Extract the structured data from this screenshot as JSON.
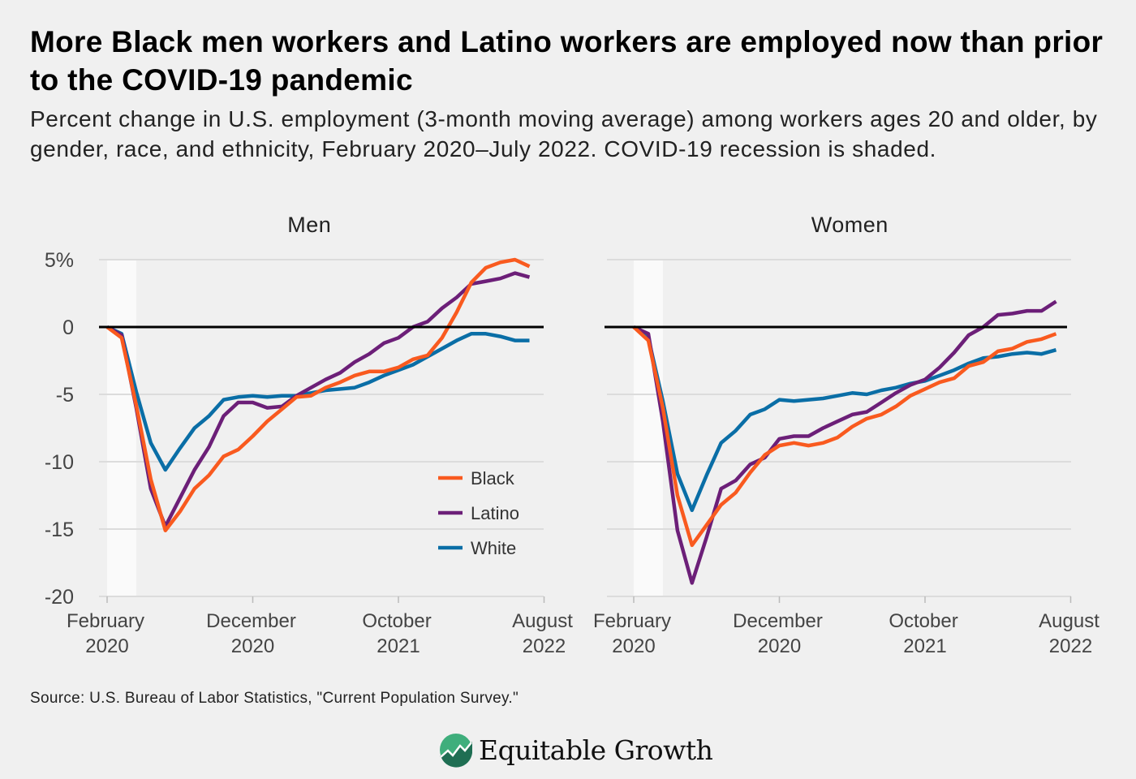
{
  "title": "More Black men workers and Latino workers are employed now than prior to the COVID-19 pandemic",
  "subtitle": "Percent change in U.S. employment (3-month moving average) among workers ages 20 and older, by gender, race, and ethnicity, February 2020–July 2022. COVID-19 recession is shaded.",
  "source": "Source: U.S. Bureau of Labor Statistics, \"Current Population Survey.\"",
  "logo": {
    "text": "Equitable Growth",
    "icon": "chart-circle-logo-icon"
  },
  "colors": {
    "Black": "#f95a1f",
    "Latino": "#6c1f78",
    "White": "#0a6ea6",
    "shading": "#fafafa",
    "background": "#f0f0f0"
  },
  "chart_data": [
    {
      "type": "line",
      "title": "Men",
      "x_start": "2020-02",
      "x_end": "2022-07",
      "x_frequency": "monthly",
      "xlim": [
        "2020-02",
        "2022-08"
      ],
      "ylim": [
        -20,
        5
      ],
      "y_ticks": [
        "5%",
        "0",
        "-5",
        "-10",
        "-15",
        "-20"
      ],
      "y_tick_values": [
        5,
        0,
        -5,
        -10,
        -15,
        -20
      ],
      "x_ticks": [
        [
          "February",
          "2020"
        ],
        [
          "December",
          "2020"
        ],
        [
          "October",
          "2021"
        ],
        [
          "August",
          "2022"
        ]
      ],
      "x_tick_values": [
        "2020-02",
        "2020-12",
        "2021-10",
        "2022-08"
      ],
      "shaded": [
        "2020-02",
        "2020-04"
      ],
      "grid": true,
      "legend": {
        "placement": "bottom-right",
        "entries": [
          "Black",
          "Latino",
          "White"
        ]
      },
      "series": [
        {
          "name": "Black",
          "values": [
            0,
            -0.8,
            -5.8,
            -11.3,
            -15.1,
            -13.7,
            -12,
            -11,
            -9.6,
            -9.1,
            -8.1,
            -7,
            -6.1,
            -5.2,
            -5.1,
            -4.5,
            -4.1,
            -3.6,
            -3.3,
            -3.3,
            -3.0,
            -2.4,
            -2.1,
            -0.8,
            1.1,
            3.3,
            4.4,
            4.8,
            5.0,
            4.5
          ]
        },
        {
          "name": "Latino",
          "values": [
            0,
            -0.6,
            -6,
            -12,
            -14.8,
            -12.7,
            -10.6,
            -8.9,
            -6.6,
            -5.6,
            -5.6,
            -6,
            -5.9,
            -5.1,
            -4.5,
            -3.9,
            -3.4,
            -2.6,
            -2.0,
            -1.2,
            -0.8,
            0,
            0.4,
            1.4,
            2.2,
            3.2,
            3.4,
            3.6,
            4.0,
            3.7
          ]
        },
        {
          "name": "White",
          "values": [
            0,
            -0.5,
            -4.8,
            -8.6,
            -10.6,
            -9.0,
            -7.5,
            -6.6,
            -5.4,
            -5.2,
            -5.1,
            -5.2,
            -5.1,
            -5.1,
            -4.9,
            -4.7,
            -4.6,
            -4.5,
            -4.1,
            -3.6,
            -3.2,
            -2.8,
            -2.2,
            -1.6,
            -1.0,
            -0.5,
            -0.5,
            -0.7,
            -1.0,
            -1.0
          ]
        }
      ]
    },
    {
      "type": "line",
      "title": "Women",
      "x_start": "2020-02",
      "x_end": "2022-07",
      "x_frequency": "monthly",
      "xlim": [
        "2020-02",
        "2022-08"
      ],
      "ylim": [
        -20,
        5
      ],
      "x_ticks": [
        [
          "February",
          "2020"
        ],
        [
          "December",
          "2020"
        ],
        [
          "October",
          "2021"
        ],
        [
          "August",
          "2022"
        ]
      ],
      "x_tick_values": [
        "2020-02",
        "2020-12",
        "2021-10",
        "2022-08"
      ],
      "shaded": [
        "2020-02",
        "2020-04"
      ],
      "grid": true,
      "series": [
        {
          "name": "Black",
          "values": [
            0,
            -1.0,
            -6,
            -12.5,
            -16.2,
            -14.7,
            -13.2,
            -12.3,
            -10.8,
            -9.5,
            -8.8,
            -8.6,
            -8.8,
            -8.6,
            -8.2,
            -7.4,
            -6.8,
            -6.5,
            -5.9,
            -5.1,
            -4.6,
            -4.1,
            -3.8,
            -2.9,
            -2.6,
            -1.8,
            -1.6,
            -1.1,
            -0.9,
            -0.5
          ]
        },
        {
          "name": "Latino",
          "values": [
            0,
            -0.5,
            -7,
            -15.1,
            -19,
            -15.6,
            -12,
            -11.4,
            -10.2,
            -9.7,
            -8.3,
            -8.1,
            -8.1,
            -7.5,
            -7.0,
            -6.5,
            -6.3,
            -5.6,
            -4.9,
            -4.3,
            -3.9,
            -3.0,
            -1.9,
            -0.6,
            0,
            0.9,
            1.0,
            1.2,
            1.2,
            1.9
          ]
        },
        {
          "name": "White",
          "values": [
            0,
            -0.8,
            -5.5,
            -10.9,
            -13.6,
            -11.0,
            -8.6,
            -7.7,
            -6.5,
            -6.1,
            -5.4,
            -5.5,
            -5.4,
            -5.3,
            -5.1,
            -4.9,
            -5.0,
            -4.7,
            -4.5,
            -4.2,
            -4.0,
            -3.6,
            -3.2,
            -2.7,
            -2.3,
            -2.2,
            -2.0,
            -1.9,
            -2.0,
            -1.7
          ]
        }
      ]
    }
  ]
}
